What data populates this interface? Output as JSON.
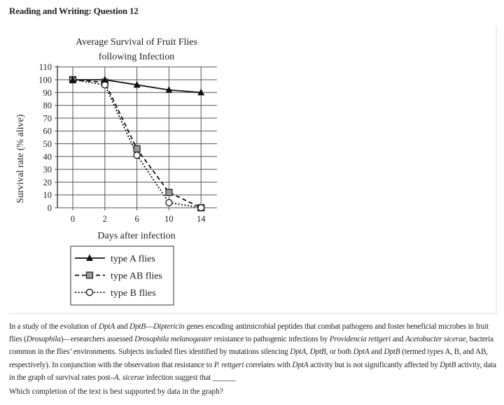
{
  "header": {
    "title": "Reading and Writing: Question 12"
  },
  "chart_data": {
    "type": "line",
    "title": [
      "Average Survival of Fruit Flies",
      "following Infection"
    ],
    "xlabel": "Days after infection",
    "ylabel": "Survival rate (% alive)",
    "categories": [
      "0",
      "2",
      "6",
      "10",
      "14"
    ],
    "yticks": [
      0,
      10,
      20,
      30,
      40,
      50,
      60,
      70,
      80,
      90,
      100,
      110
    ],
    "ylim": [
      0,
      110
    ],
    "grid": true,
    "legend_position": "bottom",
    "series": [
      {
        "name": "type A flies",
        "values": [
          100,
          100,
          96,
          92,
          90
        ],
        "marker": "triangle",
        "line": "solid"
      },
      {
        "name": "type AB flies",
        "values": [
          100,
          98,
          46,
          12,
          0
        ],
        "marker": "square",
        "line": "dashed"
      },
      {
        "name": "type B flies",
        "values": [
          100,
          96,
          41,
          4,
          0
        ],
        "marker": "circle",
        "line": "dotted"
      }
    ]
  },
  "passage": {
    "segments": [
      {
        "t": "In a study of the evolution of "
      },
      {
        "t": "DptA",
        "i": true
      },
      {
        "t": " and "
      },
      {
        "t": "DptB",
        "i": true
      },
      {
        "t": "—"
      },
      {
        "t": "Diptericin",
        "i": true
      },
      {
        "t": " genes encoding antimicrobial peptides that combat pathogens and foster beneficial microbes in fruit flies ("
      },
      {
        "t": "Drosophila",
        "i": true
      },
      {
        "t": ")—researchers assessed "
      },
      {
        "t": "Drosophila melanogaster",
        "i": true
      },
      {
        "t": " resistance to pathogenic infections by "
      },
      {
        "t": "Providencia rettgeri",
        "i": true
      },
      {
        "t": " and "
      },
      {
        "t": "Acetobacter sicerae",
        "i": true
      },
      {
        "t": ", bacteria common in the flies’ environments. Subjects included flies identified by mutations silencing "
      },
      {
        "t": "DptA",
        "i": true
      },
      {
        "t": ", "
      },
      {
        "t": "DptB",
        "i": true
      },
      {
        "t": ", or both "
      },
      {
        "t": "DptA",
        "i": true
      },
      {
        "t": " and "
      },
      {
        "t": "DptB",
        "i": true
      },
      {
        "t": " (termed types A, B, and AB, respectively). In conjunction with the observation that resistance to "
      },
      {
        "t": "P. rettgeri",
        "i": true
      },
      {
        "t": " correlates with "
      },
      {
        "t": "DptA",
        "i": true
      },
      {
        "t": " activity but is not significantly affected by "
      },
      {
        "t": "DptB",
        "i": true
      },
      {
        "t": " activity, data in the graph of survival rates post–"
      },
      {
        "t": "A. sicerae",
        "i": true
      },
      {
        "t": " infection suggest that ______"
      }
    ]
  },
  "question": "Which completion of the text is best supported by data in the graph?"
}
